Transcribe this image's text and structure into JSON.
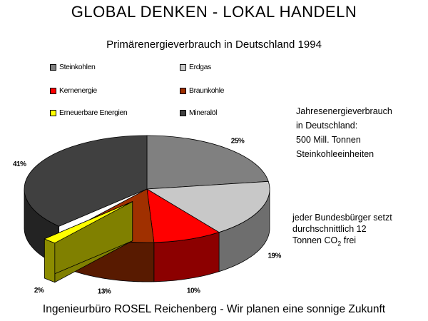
{
  "headline": "GLOBAL DENKEN  -  LOKAL HANDELN",
  "info_box": {
    "lines": [
      "Jahresenergieverbrauch",
      "in Deutschland:",
      "500 Mill. Tonnen",
      "Steinkohleeinheiten"
    ]
  },
  "co2_box": {
    "line1": "jeder Bundesbürger setzt",
    "line2": "durchschnittlich  12",
    "line3_prefix": "Tonnen CO",
    "line3_sub": "2",
    "line3_suffix": " frei"
  },
  "footer": "Ingenieurbüro ROSEL Reichenberg - Wir planen eine sonnige Zukunft",
  "chart_data": {
    "type": "pie",
    "title": "Primärenergieverbrauch in Deutschland 1994",
    "legend_position": "top",
    "series": [
      {
        "name": "Steinkohlen",
        "value": 25,
        "label": "25%",
        "color": "#808080"
      },
      {
        "name": "Erdgas",
        "value": 19,
        "label": "19%",
        "color": "#c8c8c8"
      },
      {
        "name": "Kernenergie",
        "value": 10,
        "label": "10%",
        "color": "#ff0000"
      },
      {
        "name": "Braunkohle",
        "value": 13,
        "label": "13%",
        "color": "#a03000"
      },
      {
        "name": "Erneuerbare Energien",
        "value": 2,
        "label": "2%",
        "color": "#ffff00"
      },
      {
        "name": "Mineralöl",
        "value": 41,
        "label": "41%",
        "color": "#404040"
      }
    ]
  }
}
